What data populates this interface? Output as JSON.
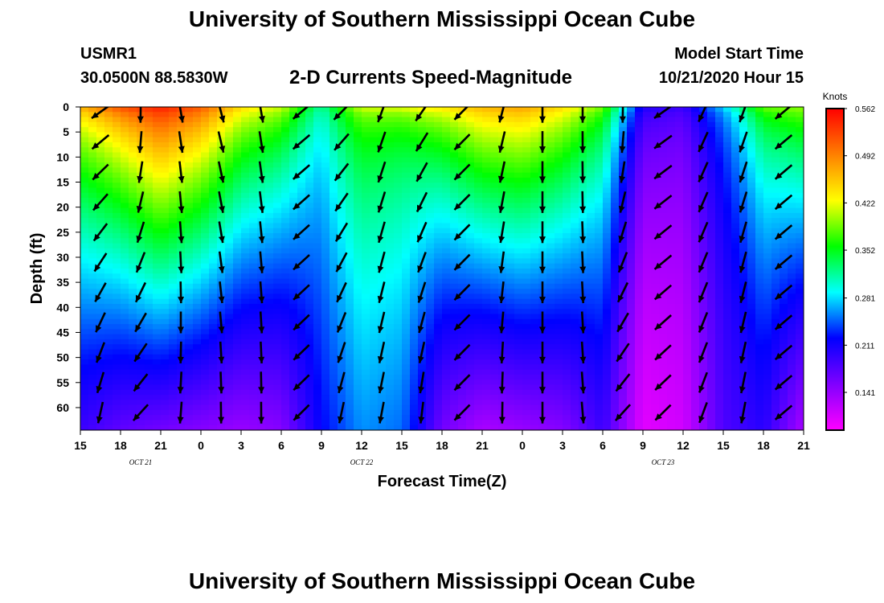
{
  "page": {
    "title": "University of Southern Mississippi Ocean Cube",
    "footer": "University of Southern Mississippi Ocean Cube",
    "station": "USMR1",
    "coords": "30.0500N 88.5830W",
    "subtitle": "2-D Currents Speed-Magnitude",
    "model_start_label": "Model Start Time",
    "model_start_value": "10/21/2020 Hour 15"
  },
  "chart_data": {
    "type": "heatmap",
    "title": "2-D Currents Speed-Magnitude",
    "xlabel": "Forecast Time(Z)",
    "ylabel": "Depth (ft)",
    "colorbar_label": "Knots",
    "x_tick_labels": [
      "15",
      "18",
      "21",
      "0",
      "3",
      "6",
      "9",
      "12",
      "15",
      "18",
      "21",
      "0",
      "3",
      "6",
      "9",
      "12",
      "15",
      "18",
      "21"
    ],
    "x_ticks_hours": [
      0,
      3,
      6,
      9,
      12,
      15,
      18,
      21,
      24,
      27,
      30,
      33,
      36,
      39,
      42,
      45,
      48,
      51,
      54
    ],
    "xlim_hours": [
      0,
      54
    ],
    "date_labels": [
      {
        "text": "OCT 21",
        "hour": 4.5
      },
      {
        "text": "OCT 22",
        "hour": 21
      },
      {
        "text": "OCT 23",
        "hour": 43.5
      }
    ],
    "y_ticks": [
      0,
      5,
      10,
      15,
      20,
      25,
      30,
      35,
      40,
      45,
      50,
      55,
      60
    ],
    "ylim": [
      0,
      64.5
    ],
    "y_inverted": true,
    "colorbar_ticks": [
      0.562,
      0.492,
      0.422,
      0.352,
      0.281,
      0.211,
      0.141
    ],
    "colorbar_range": [
      0.085,
      0.562
    ],
    "colormap": [
      "#ff00ff",
      "#8000ff",
      "#0000ff",
      "#00ffff",
      "#00ff00",
      "#ffff00",
      "#ff8000",
      "#ff0000"
    ],
    "speed_model": {
      "surface_hours": [
        0,
        3,
        6,
        9,
        12,
        15,
        18,
        21,
        24,
        27,
        30,
        33,
        36,
        39,
        42,
        45,
        48,
        51,
        54
      ],
      "surface_speed": [
        0.48,
        0.53,
        0.55,
        0.52,
        0.45,
        0.42,
        0.32,
        0.44,
        0.46,
        0.45,
        0.47,
        0.48,
        0.45,
        0.4,
        0.22,
        0.2,
        0.3,
        0.4,
        0.4
      ],
      "bottom_speed": [
        0.19,
        0.17,
        0.16,
        0.15,
        0.14,
        0.15,
        0.22,
        0.26,
        0.25,
        0.16,
        0.13,
        0.14,
        0.15,
        0.19,
        0.1,
        0.11,
        0.18,
        0.2,
        0.13
      ],
      "shape_exponent": [
        0.55,
        0.6,
        0.75,
        0.7,
        0.65,
        0.6,
        0.5,
        0.35,
        0.3,
        0.55,
        0.7,
        0.7,
        0.65,
        0.5,
        0.4,
        0.4,
        0.3,
        0.45,
        0.7
      ]
    },
    "vectors": {
      "hours": [
        1.5,
        4.5,
        7.5,
        10.5,
        13.5,
        16.5,
        19.5,
        22.5,
        25.5,
        28.5,
        31.5,
        34.5,
        37.5,
        40.5,
        43.5,
        46.5,
        49.5,
        52.5
      ],
      "depths": [
        1,
        7,
        13,
        19,
        25,
        31,
        37,
        43,
        49,
        55,
        61
      ],
      "surface_direction_deg": [
        235,
        180,
        170,
        165,
        170,
        230,
        225,
        200,
        215,
        225,
        195,
        180,
        180,
        180,
        235,
        205,
        200,
        230
      ],
      "bottom_direction_deg": [
        190,
        225,
        185,
        180,
        180,
        225,
        190,
        190,
        185,
        225,
        180,
        180,
        175,
        225,
        225,
        200,
        190,
        230
      ]
    }
  }
}
